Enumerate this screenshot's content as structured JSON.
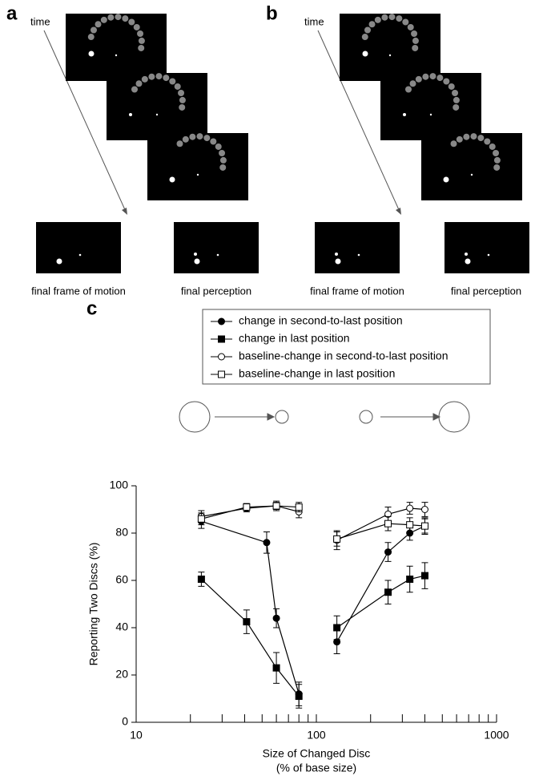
{
  "panels": [
    {
      "label": "a",
      "time": "time",
      "captions": [
        "final frame of motion",
        "final perception"
      ]
    },
    {
      "label": "b",
      "time": "time",
      "captions": [
        "final frame of motion",
        "final perception"
      ]
    }
  ],
  "chart_data": {
    "type": "line",
    "panel_label": "c",
    "xlabel": [
      "Size of Changed Disc",
      "(% of base size)"
    ],
    "ylabel": "Reporting Two Discs (%)",
    "xscale": "log",
    "xlim": [
      10,
      1000
    ],
    "xticks": [
      10,
      100,
      1000
    ],
    "xminorticks": [
      20,
      30,
      40,
      50,
      60,
      70,
      80,
      90,
      200,
      300,
      400,
      500,
      600,
      700,
      800,
      900
    ],
    "ylim": [
      0,
      100
    ],
    "yticks": [
      0,
      20,
      40,
      60,
      80,
      100
    ],
    "legend": "top",
    "series": [
      {
        "name": "change in second-to-last position",
        "color": "#000000",
        "marker": "circle",
        "filled": true,
        "x": [
          23,
          53,
          60,
          80,
          null,
          130,
          250,
          330,
          400
        ],
        "values": [
          85,
          76,
          44,
          12,
          null,
          34,
          72,
          80,
          83
        ],
        "errors": [
          3,
          4.5,
          4,
          5,
          null,
          5,
          4,
          3,
          3.5
        ]
      },
      {
        "name": "change in last position",
        "color": "#000000",
        "marker": "square",
        "filled": true,
        "x": [
          23,
          41,
          60,
          80,
          null,
          130,
          250,
          330,
          400
        ],
        "values": [
          60.5,
          42.5,
          23,
          11,
          null,
          40,
          55,
          60.5,
          62
        ],
        "errors": [
          3,
          5,
          6.5,
          5,
          null,
          5,
          5,
          5.5,
          5.5
        ]
      },
      {
        "name": "baseline-change in second-to-last position",
        "color": "#000000",
        "marker": "circle",
        "filled": false,
        "x": [
          23,
          41,
          60,
          80,
          null,
          130,
          250,
          330,
          400
        ],
        "values": [
          87,
          90.5,
          91.5,
          89,
          null,
          77,
          88,
          90.5,
          90
        ],
        "errors": [
          2.5,
          1.5,
          1.5,
          2.5,
          null,
          4,
          3,
          2.5,
          3
        ]
      },
      {
        "name": "baseline-change in last position",
        "color": "#000000",
        "marker": "square",
        "filled": false,
        "x": [
          23,
          41,
          60,
          80,
          null,
          130,
          250,
          330,
          400
        ],
        "values": [
          86,
          91,
          91.5,
          91,
          null,
          77.5,
          84,
          83.5,
          83
        ],
        "errors": [
          2.5,
          1.5,
          2,
          2,
          null,
          3,
          3,
          3,
          3
        ]
      }
    ]
  }
}
